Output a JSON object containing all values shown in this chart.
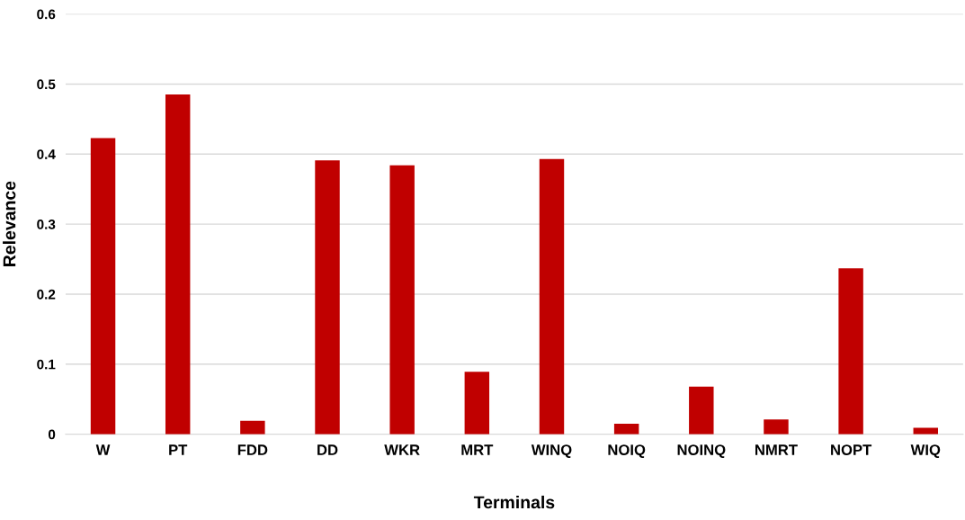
{
  "chart_data": {
    "type": "bar",
    "xlabel": "Terminals",
    "ylabel": "Relevance",
    "categories": [
      "W",
      "PT",
      "FDD",
      "DD",
      "WKR",
      "MRT",
      "WINQ",
      "NOIQ",
      "NOINQ",
      "NMRT",
      "NOPT",
      "WIQ"
    ],
    "values": [
      0.423,
      0.485,
      0.019,
      0.391,
      0.384,
      0.089,
      0.393,
      0.015,
      0.068,
      0.021,
      0.237,
      0.009
    ],
    "color": "#c00000",
    "ylim": [
      0,
      0.6
    ],
    "yticks": [
      0,
      0.1,
      0.2,
      0.3,
      0.4,
      0.5,
      0.6
    ],
    "grid": "y"
  }
}
